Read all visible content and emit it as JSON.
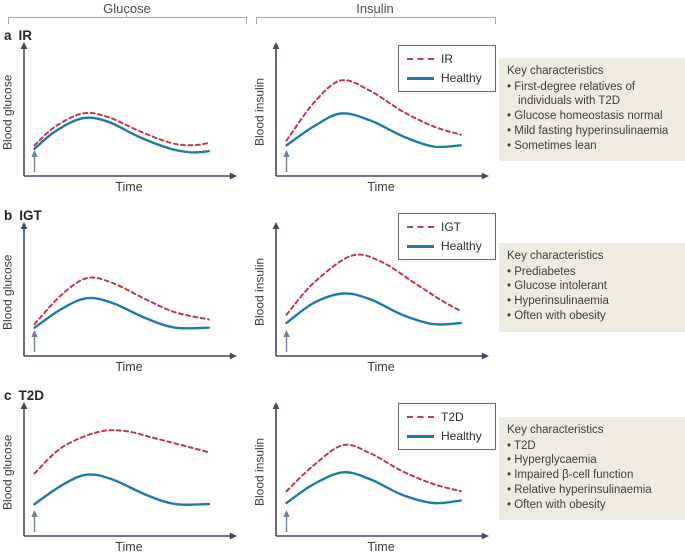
{
  "header": {
    "glucose_label": "Glucose",
    "insulin_label": "Insulin"
  },
  "axis": {
    "x_label": "Time",
    "y_label_glucose": "Blood glucose",
    "y_label_insulin": "Blood insulin"
  },
  "colors": {
    "condition": "#bf3b4c",
    "healthy": "#1d7ba9",
    "axis": "#3d4a66",
    "meal_arrow": "#71809b",
    "bracket": "#a6a6a6",
    "key_box_bg": "#eeece0"
  },
  "rows": [
    {
      "letter": "a",
      "title": "IR",
      "key_characteristics": {
        "heading": "Key characteristics",
        "items": [
          "First-degree relatives of individuals with T2D",
          "Glucose homeostasis normal",
          "Mild fasting hyperinsulinaemia",
          "Sometimes lean"
        ]
      }
    },
    {
      "letter": "b",
      "title": "IGT",
      "key_characteristics": {
        "heading": "Key characteristics",
        "items": [
          "Prediabetes",
          "Glucose intolerant",
          "Hyperinsulinaemia",
          "Often with obesity"
        ]
      }
    },
    {
      "letter": "c",
      "title": "T2D",
      "key_characteristics": {
        "heading": "Key characteristics",
        "items": [
          "T2D",
          "Hyperglycaemia",
          "Impaired β-cell function",
          "Relative hyperinsulinaemia",
          "Often with obesity"
        ]
      }
    }
  ],
  "chart_data": [
    {
      "type": "line",
      "panel": "a",
      "column": "Glucose",
      "condition": "IR",
      "xlabel": "Time",
      "ylabel": "Blood glucose",
      "note": "qualitative curves, no axis ticks; values in relative units 0-100, x as fraction of time axis",
      "ingestion_arrow": true,
      "legend": false,
      "grid": false,
      "series": [
        {
          "name": "IR",
          "style": "dashed",
          "color": "#bf3b4c",
          "points": [
            [
              0.05,
              26
            ],
            [
              0.15,
              42
            ],
            [
              0.28,
              53
            ],
            [
              0.4,
              50
            ],
            [
              0.55,
              38
            ],
            [
              0.7,
              28
            ],
            [
              0.8,
              26
            ],
            [
              0.88,
              28
            ]
          ]
        },
        {
          "name": "Healthy",
          "style": "solid",
          "color": "#1d7ba9",
          "points": [
            [
              0.05,
              23
            ],
            [
              0.15,
              38
            ],
            [
              0.28,
              49
            ],
            [
              0.4,
              46
            ],
            [
              0.55,
              33
            ],
            [
              0.7,
              23
            ],
            [
              0.8,
              20
            ],
            [
              0.88,
              21
            ]
          ]
        }
      ]
    },
    {
      "type": "line",
      "panel": "a",
      "column": "Insulin",
      "condition": "IR",
      "xlabel": "Time",
      "ylabel": "Blood insulin",
      "note": "qualitative curves, no axis ticks; values in relative units 0-100, x as fraction of time axis",
      "ingestion_arrow": true,
      "legend": true,
      "legend_position": "top-right",
      "grid": false,
      "series": [
        {
          "name": "IR",
          "style": "dashed",
          "color": "#bf3b4c",
          "points": [
            [
              0.05,
              30
            ],
            [
              0.18,
              62
            ],
            [
              0.31,
              81
            ],
            [
              0.45,
              72
            ],
            [
              0.6,
              55
            ],
            [
              0.75,
              42
            ],
            [
              0.88,
              35
            ]
          ]
        },
        {
          "name": "Healthy",
          "style": "solid",
          "color": "#1d7ba9",
          "points": [
            [
              0.05,
              26
            ],
            [
              0.18,
              42
            ],
            [
              0.31,
              53
            ],
            [
              0.45,
              47
            ],
            [
              0.6,
              34
            ],
            [
              0.75,
              25
            ],
            [
              0.88,
              26
            ]
          ]
        }
      ]
    },
    {
      "type": "line",
      "panel": "b",
      "column": "Glucose",
      "condition": "IGT",
      "xlabel": "Time",
      "ylabel": "Blood glucose",
      "note": "qualitative curves, no axis ticks; values in relative units 0-100, x as fraction of time axis",
      "ingestion_arrow": true,
      "legend": false,
      "grid": false,
      "series": [
        {
          "name": "IGT",
          "style": "dashed",
          "color": "#bf3b4c",
          "points": [
            [
              0.05,
              27
            ],
            [
              0.18,
              52
            ],
            [
              0.3,
              66
            ],
            [
              0.42,
              62
            ],
            [
              0.58,
              48
            ],
            [
              0.72,
              37
            ],
            [
              0.88,
              31
            ]
          ]
        },
        {
          "name": "Healthy",
          "style": "solid",
          "color": "#1d7ba9",
          "points": [
            [
              0.05,
              24
            ],
            [
              0.18,
              40
            ],
            [
              0.3,
              49
            ],
            [
              0.42,
              45
            ],
            [
              0.58,
              32
            ],
            [
              0.72,
              24
            ],
            [
              0.88,
              24
            ]
          ]
        }
      ]
    },
    {
      "type": "line",
      "panel": "b",
      "column": "Insulin",
      "condition": "IGT",
      "xlabel": "Time",
      "ylabel": "Blood insulin",
      "note": "qualitative curves, no axis ticks; values in relative units 0-100, x as fraction of time axis",
      "ingestion_arrow": true,
      "legend": true,
      "legend_position": "top-right",
      "grid": false,
      "series": [
        {
          "name": "IGT",
          "style": "dashed",
          "color": "#bf3b4c",
          "points": [
            [
              0.05,
              35
            ],
            [
              0.18,
              62
            ],
            [
              0.36,
              85
            ],
            [
              0.5,
              80
            ],
            [
              0.65,
              63
            ],
            [
              0.78,
              48
            ],
            [
              0.88,
              38
            ]
          ]
        },
        {
          "name": "Healthy",
          "style": "solid",
          "color": "#1d7ba9",
          "points": [
            [
              0.05,
              28
            ],
            [
              0.18,
              45
            ],
            [
              0.32,
              53
            ],
            [
              0.45,
              48
            ],
            [
              0.6,
              35
            ],
            [
              0.75,
              27
            ],
            [
              0.88,
              28
            ]
          ]
        }
      ]
    },
    {
      "type": "line",
      "panel": "c",
      "column": "Glucose",
      "condition": "T2D",
      "xlabel": "Time",
      "ylabel": "Blood glucose",
      "note": "qualitative curves, no axis ticks; values in relative units 0-100, x as fraction of time axis",
      "ingestion_arrow": true,
      "legend": false,
      "grid": false,
      "series": [
        {
          "name": "T2D",
          "style": "dashed",
          "color": "#bf3b4c",
          "points": [
            [
              0.05,
              53
            ],
            [
              0.18,
              75
            ],
            [
              0.35,
              88
            ],
            [
              0.48,
              89
            ],
            [
              0.62,
              83
            ],
            [
              0.75,
              77
            ],
            [
              0.88,
              71
            ]
          ]
        },
        {
          "name": "Healthy",
          "style": "solid",
          "color": "#1d7ba9",
          "points": [
            [
              0.05,
              27
            ],
            [
              0.18,
              43
            ],
            [
              0.3,
              52
            ],
            [
              0.42,
              48
            ],
            [
              0.58,
              35
            ],
            [
              0.72,
              27
            ],
            [
              0.88,
              27
            ]
          ]
        }
      ]
    },
    {
      "type": "line",
      "panel": "c",
      "column": "Insulin",
      "condition": "T2D",
      "xlabel": "Time",
      "ylabel": "Blood insulin",
      "note": "qualitative curves, no axis ticks; values in relative units 0-100, x as fraction of time axis",
      "ingestion_arrow": true,
      "legend": true,
      "legend_position": "top-right",
      "grid": false,
      "series": [
        {
          "name": "T2D",
          "style": "dashed",
          "color": "#bf3b4c",
          "points": [
            [
              0.05,
              38
            ],
            [
              0.18,
              60
            ],
            [
              0.32,
              77
            ],
            [
              0.45,
              70
            ],
            [
              0.6,
              55
            ],
            [
              0.75,
              44
            ],
            [
              0.88,
              38
            ]
          ]
        },
        {
          "name": "Healthy",
          "style": "solid",
          "color": "#1d7ba9",
          "points": [
            [
              0.05,
              28
            ],
            [
              0.18,
              44
            ],
            [
              0.32,
              54
            ],
            [
              0.45,
              48
            ],
            [
              0.6,
              35
            ],
            [
              0.75,
              28
            ],
            [
              0.88,
              30
            ]
          ]
        }
      ]
    }
  ]
}
